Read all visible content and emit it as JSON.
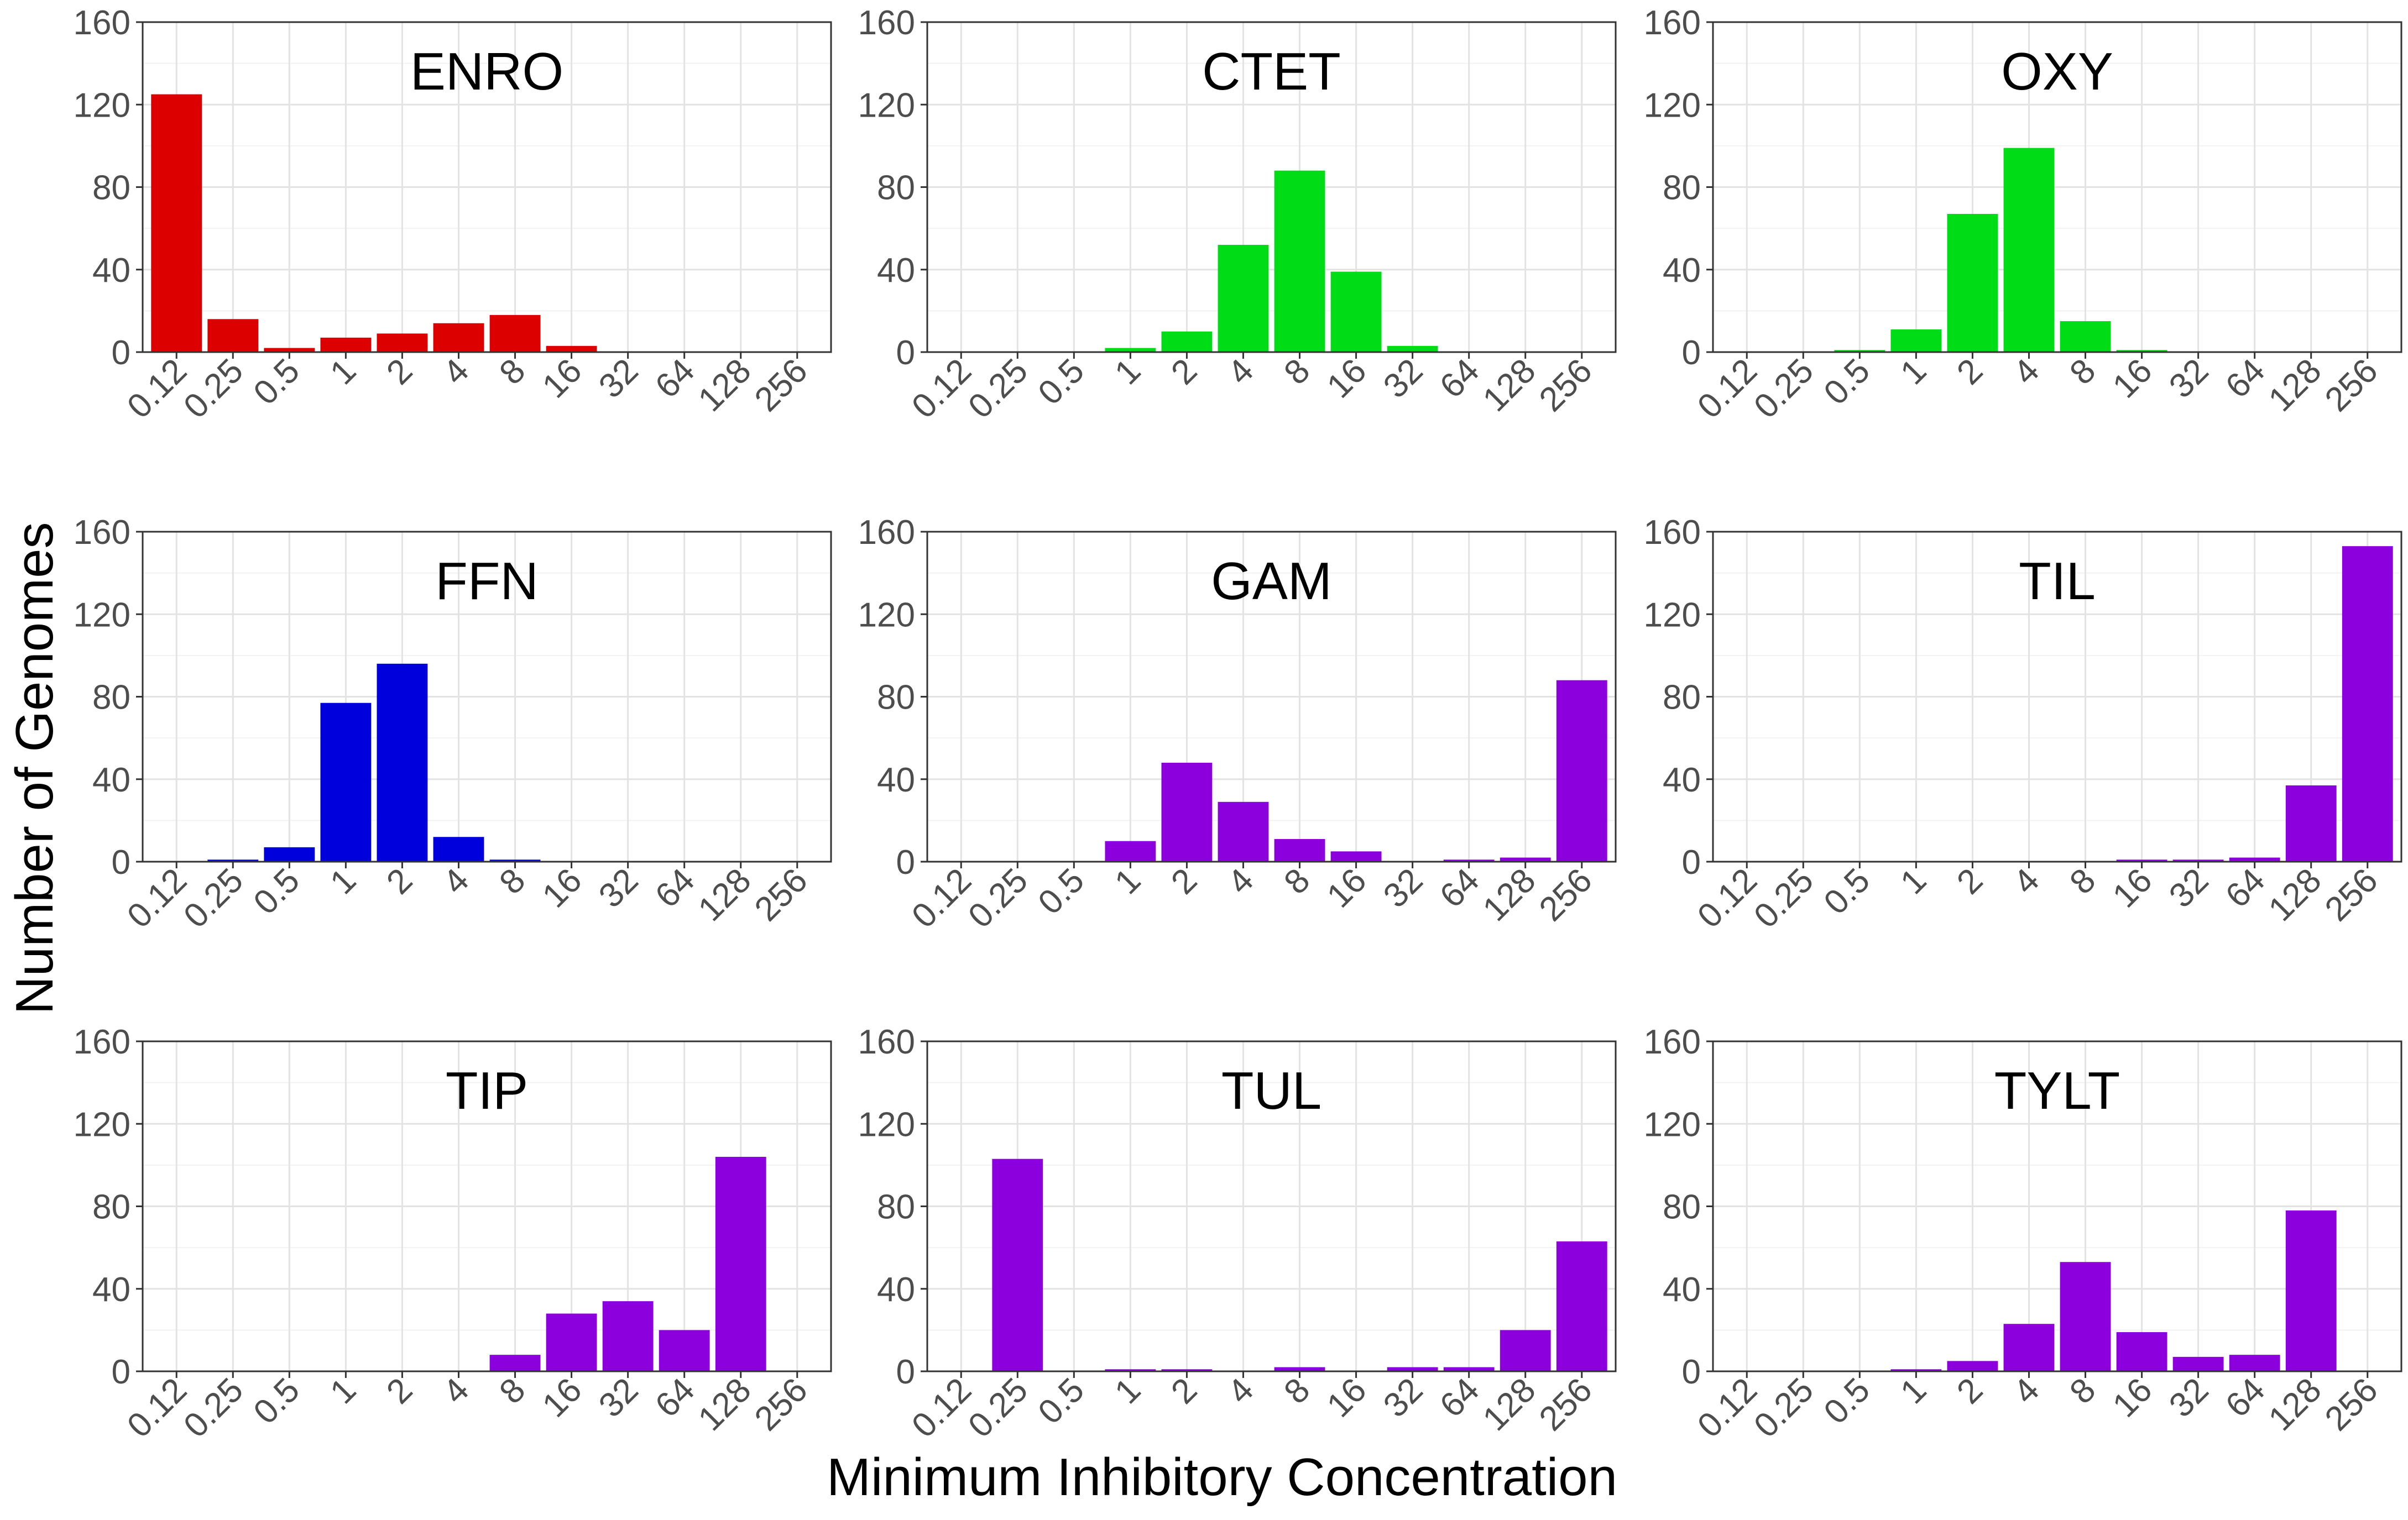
{
  "figure": {
    "xlabel": "Minimum Inhibitory Concentration",
    "ylabel": "Number of Genomes"
  },
  "chart_data": [
    {
      "type": "bar",
      "title": "ENRO",
      "color": "#dd0000",
      "categories": [
        "0.12",
        "0.25",
        "0.5",
        "1",
        "2",
        "4",
        "8",
        "16",
        "32",
        "64",
        "128",
        "256"
      ],
      "values": [
        125,
        16,
        2,
        7,
        9,
        14,
        18,
        3,
        0,
        0,
        0,
        0
      ],
      "ylim": [
        0,
        160
      ],
      "yticks": [
        0,
        40,
        80,
        120,
        160
      ]
    },
    {
      "type": "bar",
      "title": "CTET",
      "color": "#00dd16",
      "categories": [
        "0.12",
        "0.25",
        "0.5",
        "1",
        "2",
        "4",
        "8",
        "16",
        "32",
        "64",
        "128",
        "256"
      ],
      "values": [
        0,
        0,
        0,
        2,
        10,
        52,
        88,
        39,
        3,
        0,
        0,
        0
      ],
      "ylim": [
        0,
        160
      ],
      "yticks": [
        0,
        40,
        80,
        120,
        160
      ]
    },
    {
      "type": "bar",
      "title": "OXY",
      "color": "#00dd16",
      "categories": [
        "0.12",
        "0.25",
        "0.5",
        "1",
        "2",
        "4",
        "8",
        "16",
        "32",
        "64",
        "128",
        "256"
      ],
      "values": [
        0,
        0,
        1,
        11,
        67,
        99,
        15,
        1,
        0,
        0,
        0,
        0
      ],
      "ylim": [
        0,
        160
      ],
      "yticks": [
        0,
        40,
        80,
        120,
        160
      ]
    },
    {
      "type": "bar",
      "title": "FFN",
      "color": "#0000dd",
      "categories": [
        "0.12",
        "0.25",
        "0.5",
        "1",
        "2",
        "4",
        "8",
        "16",
        "32",
        "64",
        "128",
        "256"
      ],
      "values": [
        0,
        1,
        7,
        77,
        96,
        12,
        1,
        0,
        0,
        0,
        0,
        0
      ],
      "ylim": [
        0,
        160
      ],
      "yticks": [
        0,
        40,
        80,
        120,
        160
      ]
    },
    {
      "type": "bar",
      "title": "GAM",
      "color": "#8b00dd",
      "categories": [
        "0.12",
        "0.25",
        "0.5",
        "1",
        "2",
        "4",
        "8",
        "16",
        "32",
        "64",
        "128",
        "256"
      ],
      "values": [
        0,
        0,
        0,
        10,
        48,
        29,
        11,
        5,
        0,
        1,
        2,
        88
      ],
      "ylim": [
        0,
        160
      ],
      "yticks": [
        0,
        40,
        80,
        120,
        160
      ]
    },
    {
      "type": "bar",
      "title": "TIL",
      "color": "#8b00dd",
      "categories": [
        "0.12",
        "0.25",
        "0.5",
        "1",
        "2",
        "4",
        "8",
        "16",
        "32",
        "64",
        "128",
        "256"
      ],
      "values": [
        0,
        0,
        0,
        0,
        0,
        0,
        0,
        1,
        1,
        2,
        37,
        153
      ],
      "ylim": [
        0,
        160
      ],
      "yticks": [
        0,
        40,
        80,
        120,
        160
      ]
    },
    {
      "type": "bar",
      "title": "TIP",
      "color": "#8b00dd",
      "categories": [
        "0.12",
        "0.25",
        "0.5",
        "1",
        "2",
        "4",
        "8",
        "16",
        "32",
        "64",
        "128",
        "256"
      ],
      "values": [
        0,
        0,
        0,
        0,
        0,
        0,
        8,
        28,
        34,
        20,
        104,
        0
      ],
      "ylim": [
        0,
        160
      ],
      "yticks": [
        0,
        40,
        80,
        120,
        160
      ]
    },
    {
      "type": "bar",
      "title": "TUL",
      "color": "#8b00dd",
      "categories": [
        "0.12",
        "0.25",
        "0.5",
        "1",
        "2",
        "4",
        "8",
        "16",
        "32",
        "64",
        "128",
        "256"
      ],
      "values": [
        0,
        103,
        0,
        1,
        1,
        0,
        2,
        0,
        2,
        2,
        20,
        63
      ],
      "ylim": [
        0,
        160
      ],
      "yticks": [
        0,
        40,
        80,
        120,
        160
      ]
    },
    {
      "type": "bar",
      "title": "TYLT",
      "color": "#8b00dd",
      "categories": [
        "0.12",
        "0.25",
        "0.5",
        "1",
        "2",
        "4",
        "8",
        "16",
        "32",
        "64",
        "128",
        "256"
      ],
      "values": [
        0,
        0,
        0,
        1,
        5,
        23,
        53,
        19,
        7,
        8,
        78,
        0
      ],
      "ylim": [
        0,
        160
      ],
      "yticks": [
        0,
        40,
        80,
        120,
        160
      ]
    }
  ]
}
